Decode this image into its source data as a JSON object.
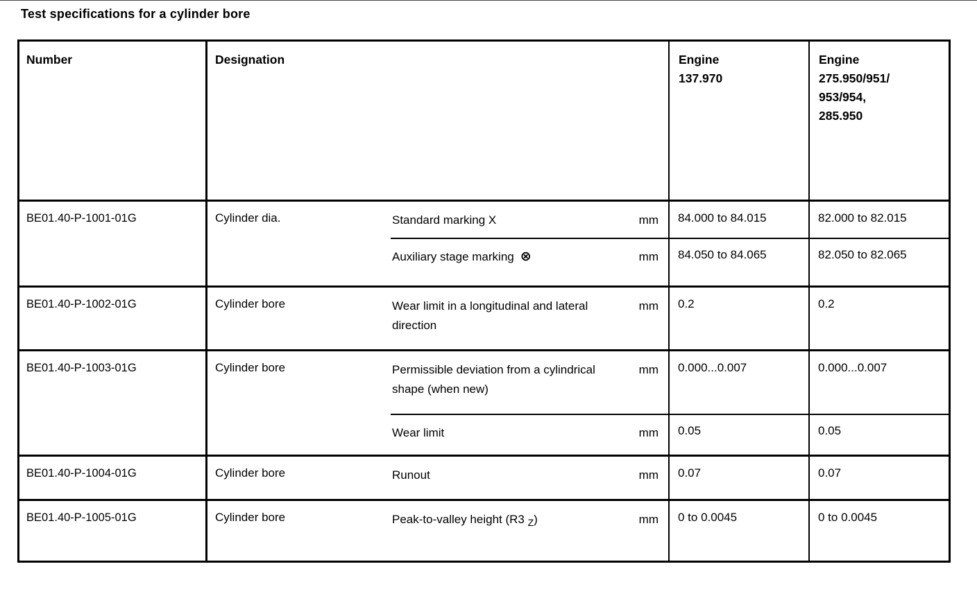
{
  "title": "Test specifications for a cylinder bore",
  "table": {
    "headers": {
      "number": "Number",
      "designation": "Designation",
      "engine1": [
        "Engine",
        "137.970"
      ],
      "engine2": [
        "Engine",
        "275.950/951/",
        "953/954,",
        "285.950"
      ]
    },
    "rows": [
      {
        "number": "BE01.40-P-1001-01G",
        "designation": "Cylinder dia.",
        "specs": [
          {
            "label": "Standard marking X",
            "unit": "mm",
            "engine1": "84.000 to 84.015",
            "engine2": "82.000 to 82.015"
          },
          {
            "label": "Auxiliary stage marking",
            "symbol": "⊗",
            "unit": "mm",
            "engine1": "84.050 to 84.065",
            "engine2": "82.050 to 82.065"
          }
        ]
      },
      {
        "number": "BE01.40-P-1002-01G",
        "designation": "Cylinder bore",
        "specs": [
          {
            "label": "Wear limit in a longitudinal and lateral direction",
            "unit": "mm",
            "engine1": "0.2",
            "engine2": "0.2"
          }
        ]
      },
      {
        "number": "BE01.40-P-1003-01G",
        "designation": "Cylinder bore",
        "specs": [
          {
            "label": "Permissible deviation from a cylindrical shape (when new)",
            "unit": "mm",
            "engine1": "0.000...0.007",
            "engine2": "0.000...0.007"
          },
          {
            "label": "Wear limit",
            "unit": "mm",
            "engine1": "0.05",
            "engine2": "0.05"
          }
        ]
      },
      {
        "number": "BE01.40-P-1004-01G",
        "designation": "Cylinder bore",
        "specs": [
          {
            "label": "Runout",
            "unit": "mm",
            "engine1": "0.07",
            "engine2": "0.07"
          }
        ]
      },
      {
        "number": "BE01.40-P-1005-01G",
        "designation": "Cylinder bore",
        "specs": [
          {
            "label": "Peak-to-valley height (R3",
            "subscript": "Z",
            "label_suffix": ")",
            "unit": "mm",
            "engine1": "0 to 0.0045",
            "engine2": "0 to 0.0045"
          }
        ]
      }
    ]
  }
}
